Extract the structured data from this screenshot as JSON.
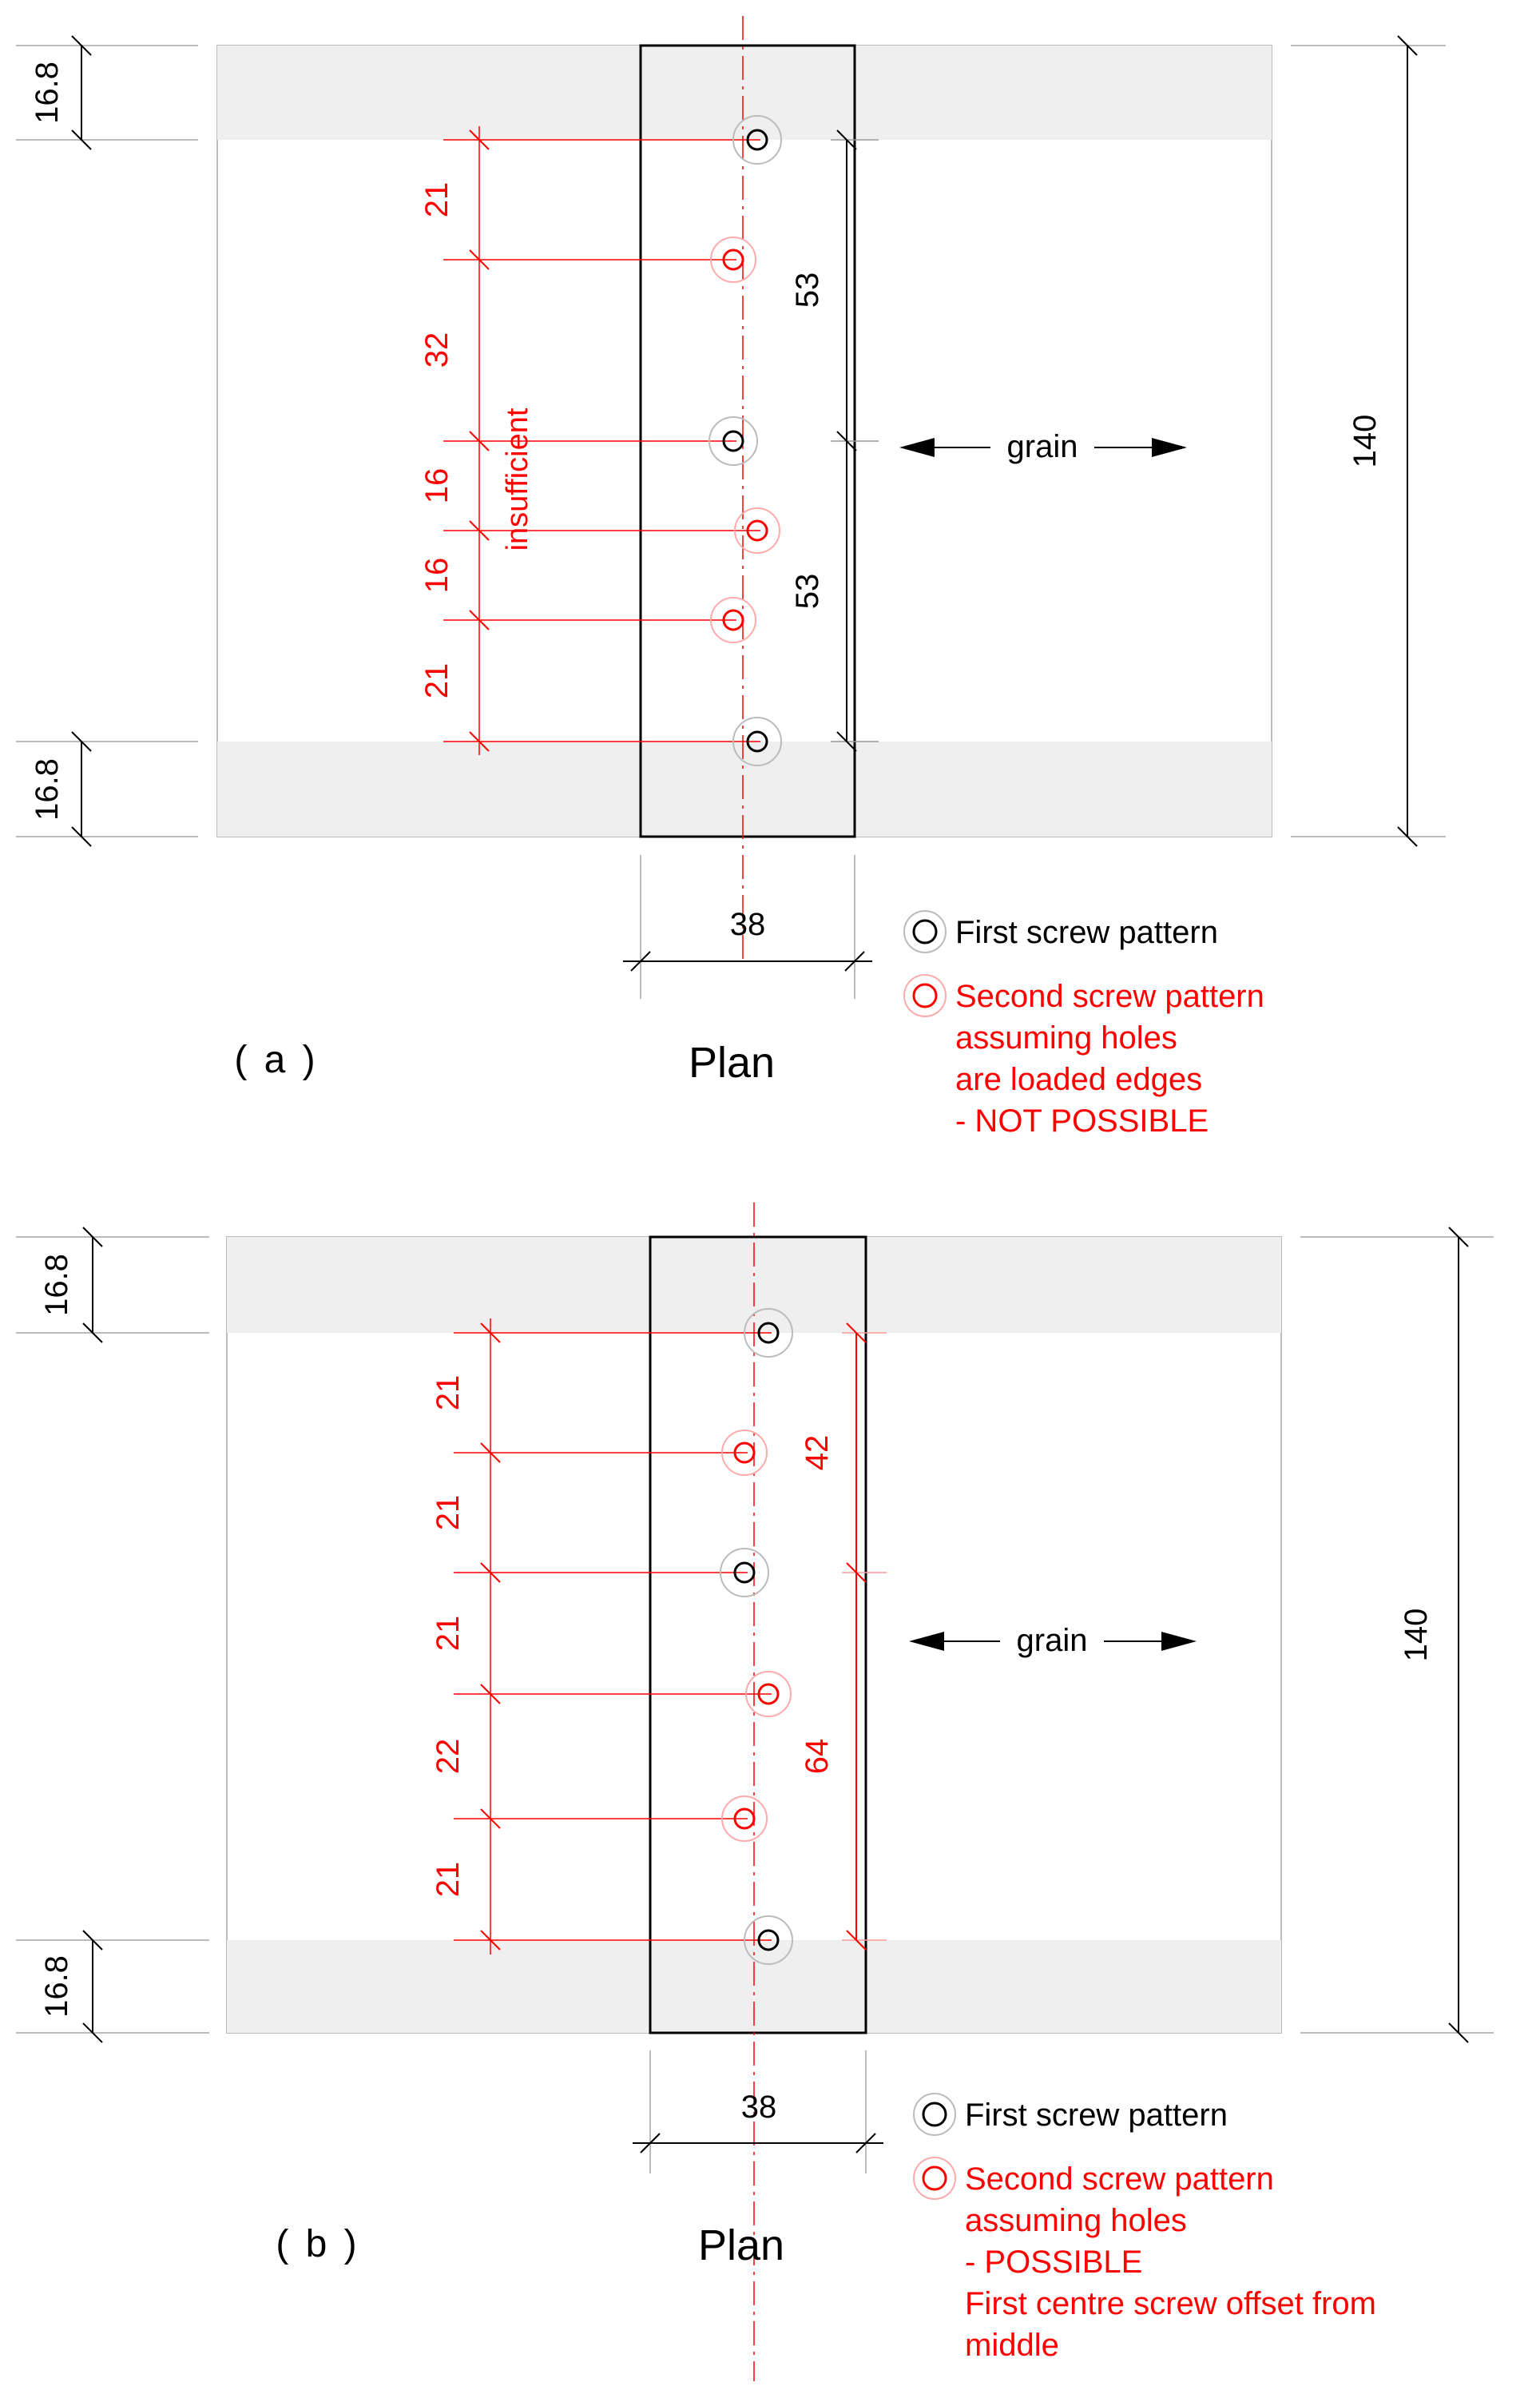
{
  "colors": {
    "first_pattern": "#000000",
    "second_pattern": "#ff0000",
    "beam_shade": "#efefef",
    "outline": "#000000",
    "construction_line": "#aaaaaa"
  },
  "icons": {
    "first_screw": "ring-icon-black",
    "second_screw": "ring-icon-red",
    "grain_arrow": "double-headed-arrow"
  },
  "panels": [
    {
      "label": "( a )",
      "view_title": "Plan",
      "edge_distance_top": "16.8",
      "edge_distance_bottom": "16.8",
      "overall_depth": "140",
      "member_width": "38",
      "first_spacings": [
        "53",
        "53"
      ],
      "second_spacings": [
        "21",
        "32",
        "16",
        "16",
        "21"
      ],
      "note": "insufficient",
      "grain_label": "grain",
      "legend": {
        "first": "First screw pattern",
        "second": [
          "Second screw pattern",
          "assuming holes",
          "are loaded edges",
          "- NOT POSSIBLE"
        ]
      },
      "screws": [
        {
          "pattern": "first",
          "position": 0
        },
        {
          "pattern": "second",
          "position": 21
        },
        {
          "pattern": "first",
          "position": 53
        },
        {
          "pattern": "second",
          "position": 69
        },
        {
          "pattern": "second",
          "position": 85
        },
        {
          "pattern": "first",
          "position": 106
        }
      ]
    },
    {
      "label": "( b )",
      "view_title": "Plan",
      "edge_distance_top": "16.8",
      "edge_distance_bottom": "16.8",
      "overall_depth": "140",
      "member_width": "38",
      "first_spacings": [
        "42",
        "64"
      ],
      "second_spacings": [
        "21",
        "21",
        "21",
        "22",
        "21"
      ],
      "note": "",
      "grain_label": "grain",
      "legend": {
        "first": "First screw pattern",
        "second": [
          "Second screw pattern",
          "assuming holes",
          "- POSSIBLE",
          "First centre screw offset from",
          "middle"
        ]
      },
      "screws": [
        {
          "pattern": "first",
          "position": 0
        },
        {
          "pattern": "second",
          "position": 21
        },
        {
          "pattern": "first",
          "position": 42
        },
        {
          "pattern": "second",
          "position": 63
        },
        {
          "pattern": "second",
          "position": 85
        },
        {
          "pattern": "first",
          "position": 106
        }
      ]
    }
  ]
}
